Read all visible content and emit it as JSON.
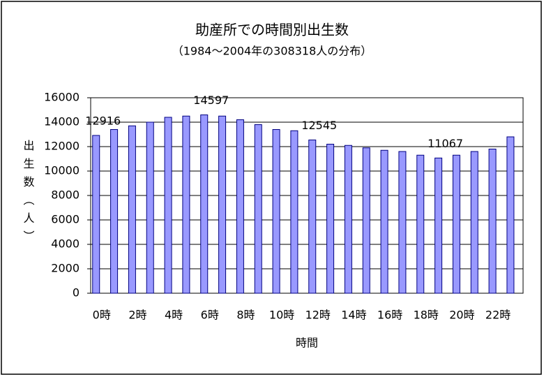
{
  "chart_data": {
    "type": "bar",
    "title": "助産所での時間別出生数",
    "subtitle": "（1984～2004年の308318人の分布）",
    "x_label": "時間",
    "y_label": "出生数（人）",
    "categories": [
      "0時",
      null,
      "2時",
      null,
      "4時",
      null,
      "6時",
      null,
      "8時",
      null,
      "10時",
      null,
      "12時",
      null,
      "14時",
      null,
      "16時",
      null,
      "18時",
      null,
      "20時",
      null,
      "22時",
      null
    ],
    "values": [
      12916,
      13400,
      13700,
      14000,
      14400,
      14500,
      14597,
      14500,
      14200,
      13800,
      13400,
      13300,
      12545,
      12200,
      12100,
      11900,
      11700,
      11600,
      11300,
      11067,
      11300,
      11600,
      11800,
      12800
    ],
    "value_labels": [
      "12916",
      null,
      null,
      null,
      null,
      null,
      "14597",
      null,
      null,
      null,
      null,
      null,
      "12545",
      null,
      null,
      null,
      null,
      null,
      null,
      "11067",
      null,
      null,
      null,
      null
    ],
    "color": "#9999ff",
    "ylim": [
      0,
      16000
    ],
    "yticks": [
      0,
      2000,
      4000,
      6000,
      8000,
      10000,
      12000,
      14000,
      16000
    ],
    "grid": true
  }
}
